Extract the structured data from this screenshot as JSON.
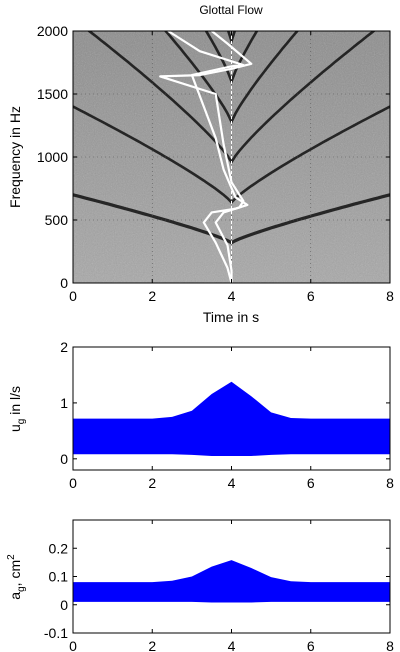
{
  "chart_data": [
    {
      "type": "heatmap",
      "subtype": "spectrogram",
      "title": "Glottal Flow",
      "xlabel": "Time in s",
      "ylabel": "Frequency in Hz",
      "xlim": [
        0,
        8
      ],
      "ylim": [
        0,
        2000
      ],
      "xticks": [
        0,
        2,
        4,
        6,
        8
      ],
      "yticks": [
        0,
        500,
        1000,
        1500,
        2000
      ],
      "xtick_labels": [
        "0",
        "2",
        "4",
        "6",
        "8"
      ],
      "ytick_labels": [
        "0",
        "500",
        "1000",
        "1500",
        "2000"
      ],
      "grid": true,
      "marker_time": 4,
      "harmonics": {
        "f0_at_edges": 700,
        "f0_at_center": 320,
        "count": 6
      },
      "overlay_series": [
        {
          "color": "#ffffff",
          "points": [
            [
              4.0,
              0
            ],
            [
              3.9,
              120
            ],
            [
              3.6,
              320
            ],
            [
              3.3,
              480
            ],
            [
              3.5,
              560
            ],
            [
              4.1,
              590
            ],
            [
              4.4,
              620
            ],
            [
              4.1,
              680
            ],
            [
              3.8,
              900
            ],
            [
              3.6,
              1150
            ],
            [
              3.3,
              1400
            ],
            [
              3.0,
              1650
            ],
            [
              4.0,
              1720
            ],
            [
              4.3,
              1730
            ],
            [
              3.2,
              1840
            ],
            [
              2.6,
              1960
            ],
            [
              2.4,
              2000
            ]
          ]
        },
        {
          "color": "#ffffff",
          "points": [
            [
              4.0,
              0
            ],
            [
              4.0,
              100
            ],
            [
              3.9,
              300
            ],
            [
              3.6,
              480
            ],
            [
              3.8,
              560
            ],
            [
              4.2,
              600
            ],
            [
              4.3,
              650
            ],
            [
              4.0,
              800
            ],
            [
              3.8,
              1100
            ],
            [
              3.6,
              1500
            ],
            [
              2.2,
              1640
            ],
            [
              3.2,
              1650
            ],
            [
              4.0,
              1700
            ],
            [
              4.5,
              1740
            ],
            [
              3.9,
              1900
            ],
            [
              3.5,
              2000
            ]
          ]
        }
      ]
    },
    {
      "type": "area",
      "subtype": "envelope",
      "title": "",
      "xlabel": "",
      "ylabel": "u_g in l/s",
      "ylabel_main": "u",
      "ylabel_sub": "g",
      "ylabel_rest": " in l/s",
      "xlim": [
        0,
        8
      ],
      "ylim": [
        -0.2,
        2
      ],
      "xticks": [
        0,
        2,
        4,
        6,
        8
      ],
      "yticks": [
        0,
        1,
        2
      ],
      "xtick_labels": [
        "0",
        "2",
        "4",
        "6",
        "8"
      ],
      "ytick_labels": [
        "0",
        "1",
        "2"
      ],
      "grid": false,
      "color": "#0000ff",
      "x": [
        0,
        1,
        2,
        2.5,
        3,
        3.5,
        4,
        4.5,
        5,
        5.5,
        6,
        7,
        8
      ],
      "upper": [
        0.72,
        0.72,
        0.72,
        0.75,
        0.86,
        1.16,
        1.38,
        1.12,
        0.83,
        0.73,
        0.72,
        0.72,
        0.72
      ],
      "lower": [
        0.08,
        0.08,
        0.08,
        0.08,
        0.07,
        0.05,
        0.05,
        0.05,
        0.07,
        0.08,
        0.08,
        0.08,
        0.08
      ]
    },
    {
      "type": "area",
      "subtype": "envelope",
      "title": "",
      "xlabel": "",
      "ylabel": "a_g, cm^2",
      "ylabel_main": "a",
      "ylabel_sub": "g",
      "ylabel_rest": ", cm",
      "ylabel_sup": "2",
      "xlim": [
        0,
        8
      ],
      "ylim": [
        -0.1,
        0.3
      ],
      "xticks": [
        0,
        2,
        4,
        6,
        8
      ],
      "yticks": [
        -0.1,
        0,
        0.1,
        0.2
      ],
      "xtick_labels": [
        "0",
        "2",
        "4",
        "6",
        "8"
      ],
      "ytick_labels": [
        "-0.1",
        "0",
        "0.1",
        "0.2"
      ],
      "grid": false,
      "color": "#0000ff",
      "x": [
        0,
        1,
        2,
        2.5,
        3,
        3.5,
        4,
        4.5,
        5,
        5.5,
        6,
        7,
        8
      ],
      "upper": [
        0.08,
        0.08,
        0.08,
        0.085,
        0.1,
        0.135,
        0.158,
        0.13,
        0.098,
        0.083,
        0.08,
        0.08,
        0.08
      ],
      "lower": [
        0.01,
        0.01,
        0.01,
        0.01,
        0.01,
        0.008,
        0.008,
        0.008,
        0.01,
        0.01,
        0.01,
        0.01,
        0.01
      ]
    }
  ]
}
